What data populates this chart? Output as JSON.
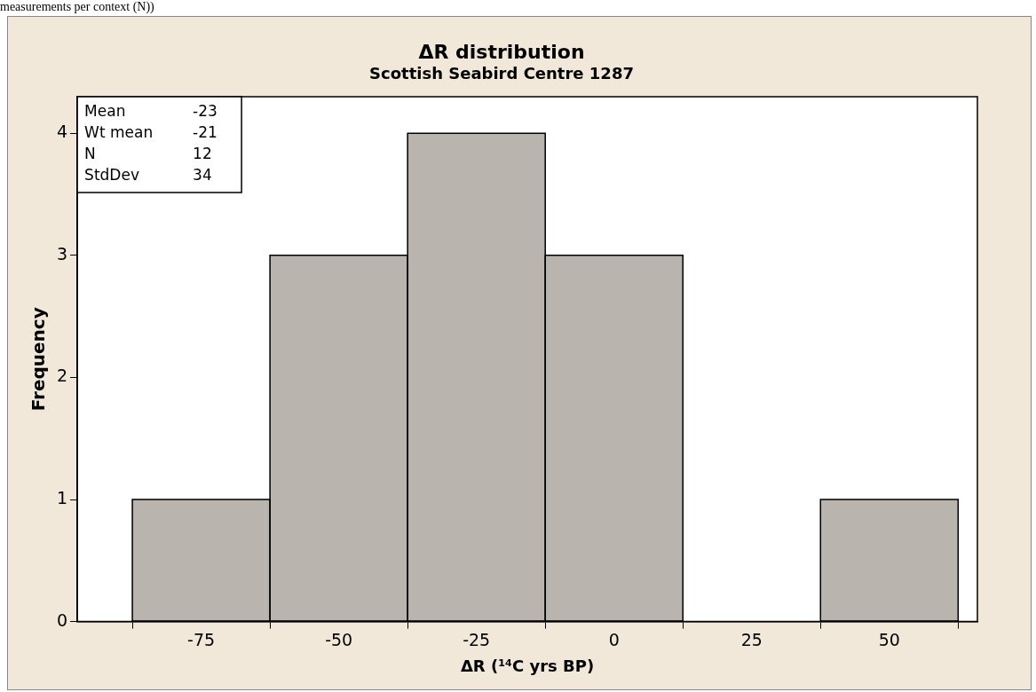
{
  "chart_data": {
    "type": "histogram",
    "title": "ΔR distribution",
    "subtitle": "Scottish Seabird Centre 1287",
    "xlabel": "ΔR (¹⁴C yrs BP)",
    "ylabel": "Frequency",
    "bins": [
      -87.5,
      -62.5,
      -37.5,
      -12.5,
      12.5,
      37.5,
      62.5
    ],
    "values": [
      1,
      3,
      4,
      3,
      0,
      1
    ],
    "color": "#bab4af",
    "xlim": [
      -97.5,
      66
    ],
    "xticks": [
      -75,
      -50,
      -25,
      0,
      25,
      50
    ],
    "ylim": [
      0,
      4.3
    ],
    "yticks": [
      0,
      1,
      2,
      3,
      4
    ],
    "grid": false,
    "legend": false,
    "annotations": [
      "measurements per context (N))",
      "Mean -23",
      "Wt mean -21",
      "N 12",
      "StdDev 34"
    ]
  }
}
